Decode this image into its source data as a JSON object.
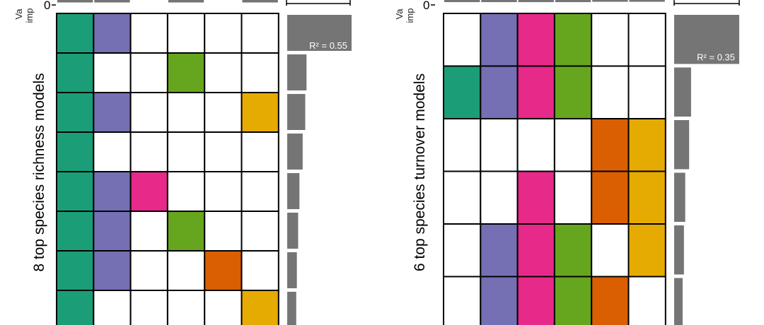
{
  "colors": {
    "variables": [
      "#1b9e77",
      "#7570b3",
      "#e7298a",
      "#66a61e",
      "#d95f02",
      "#e6ab02"
    ],
    "empty_cell": "#ffffff",
    "grid_line": "#000000",
    "bar": "#757575"
  },
  "chart_data": [
    {
      "type": "heatmap",
      "ylabel": "8 top species richness models",
      "axis_label_partial": "Va imp",
      "axis_tick": "0",
      "r2_label": "R² = 0.55",
      "variable_importance": [
        0.5,
        0.5,
        0.0,
        0.5,
        0.0,
        0.5
      ],
      "models": [
        {
          "vars": [
            1,
            1,
            0,
            0,
            0,
            0
          ],
          "r2_bar": 1.0
        },
        {
          "vars": [
            1,
            0,
            0,
            1,
            0,
            0
          ],
          "r2_bar": 0.3
        },
        {
          "vars": [
            1,
            1,
            0,
            0,
            0,
            1
          ],
          "r2_bar": 0.28
        },
        {
          "vars": [
            1,
            0,
            0,
            0,
            0,
            0
          ],
          "r2_bar": 0.24
        },
        {
          "vars": [
            1,
            1,
            1,
            0,
            0,
            0
          ],
          "r2_bar": 0.19
        },
        {
          "vars": [
            1,
            1,
            0,
            1,
            0,
            0
          ],
          "r2_bar": 0.17
        },
        {
          "vars": [
            1,
            1,
            0,
            0,
            1,
            0
          ],
          "r2_bar": 0.15
        },
        {
          "vars": [
            1,
            0,
            0,
            0,
            0,
            1
          ],
          "r2_bar": 0.14
        }
      ]
    },
    {
      "type": "heatmap",
      "ylabel": "6 top species turnover models",
      "axis_label_partial": "Va imp",
      "axis_tick": "0",
      "r2_label": "R² = 0.35",
      "variable_importance": [
        0.4,
        0.4,
        0.4,
        0.4,
        0.3,
        0.3
      ],
      "models": [
        {
          "vars": [
            0,
            1,
            1,
            1,
            0,
            0
          ],
          "r2_bar": 1.0
        },
        {
          "vars": [
            1,
            1,
            1,
            1,
            0,
            0
          ],
          "r2_bar": 0.26
        },
        {
          "vars": [
            0,
            0,
            0,
            0,
            1,
            1
          ],
          "r2_bar": 0.23
        },
        {
          "vars": [
            0,
            0,
            1,
            0,
            1,
            1
          ],
          "r2_bar": 0.17
        },
        {
          "vars": [
            0,
            1,
            1,
            1,
            0,
            1
          ],
          "r2_bar": 0.15
        },
        {
          "vars": [
            0,
            1,
            1,
            1,
            1,
            0
          ],
          "r2_bar": 0.13
        }
      ]
    }
  ]
}
